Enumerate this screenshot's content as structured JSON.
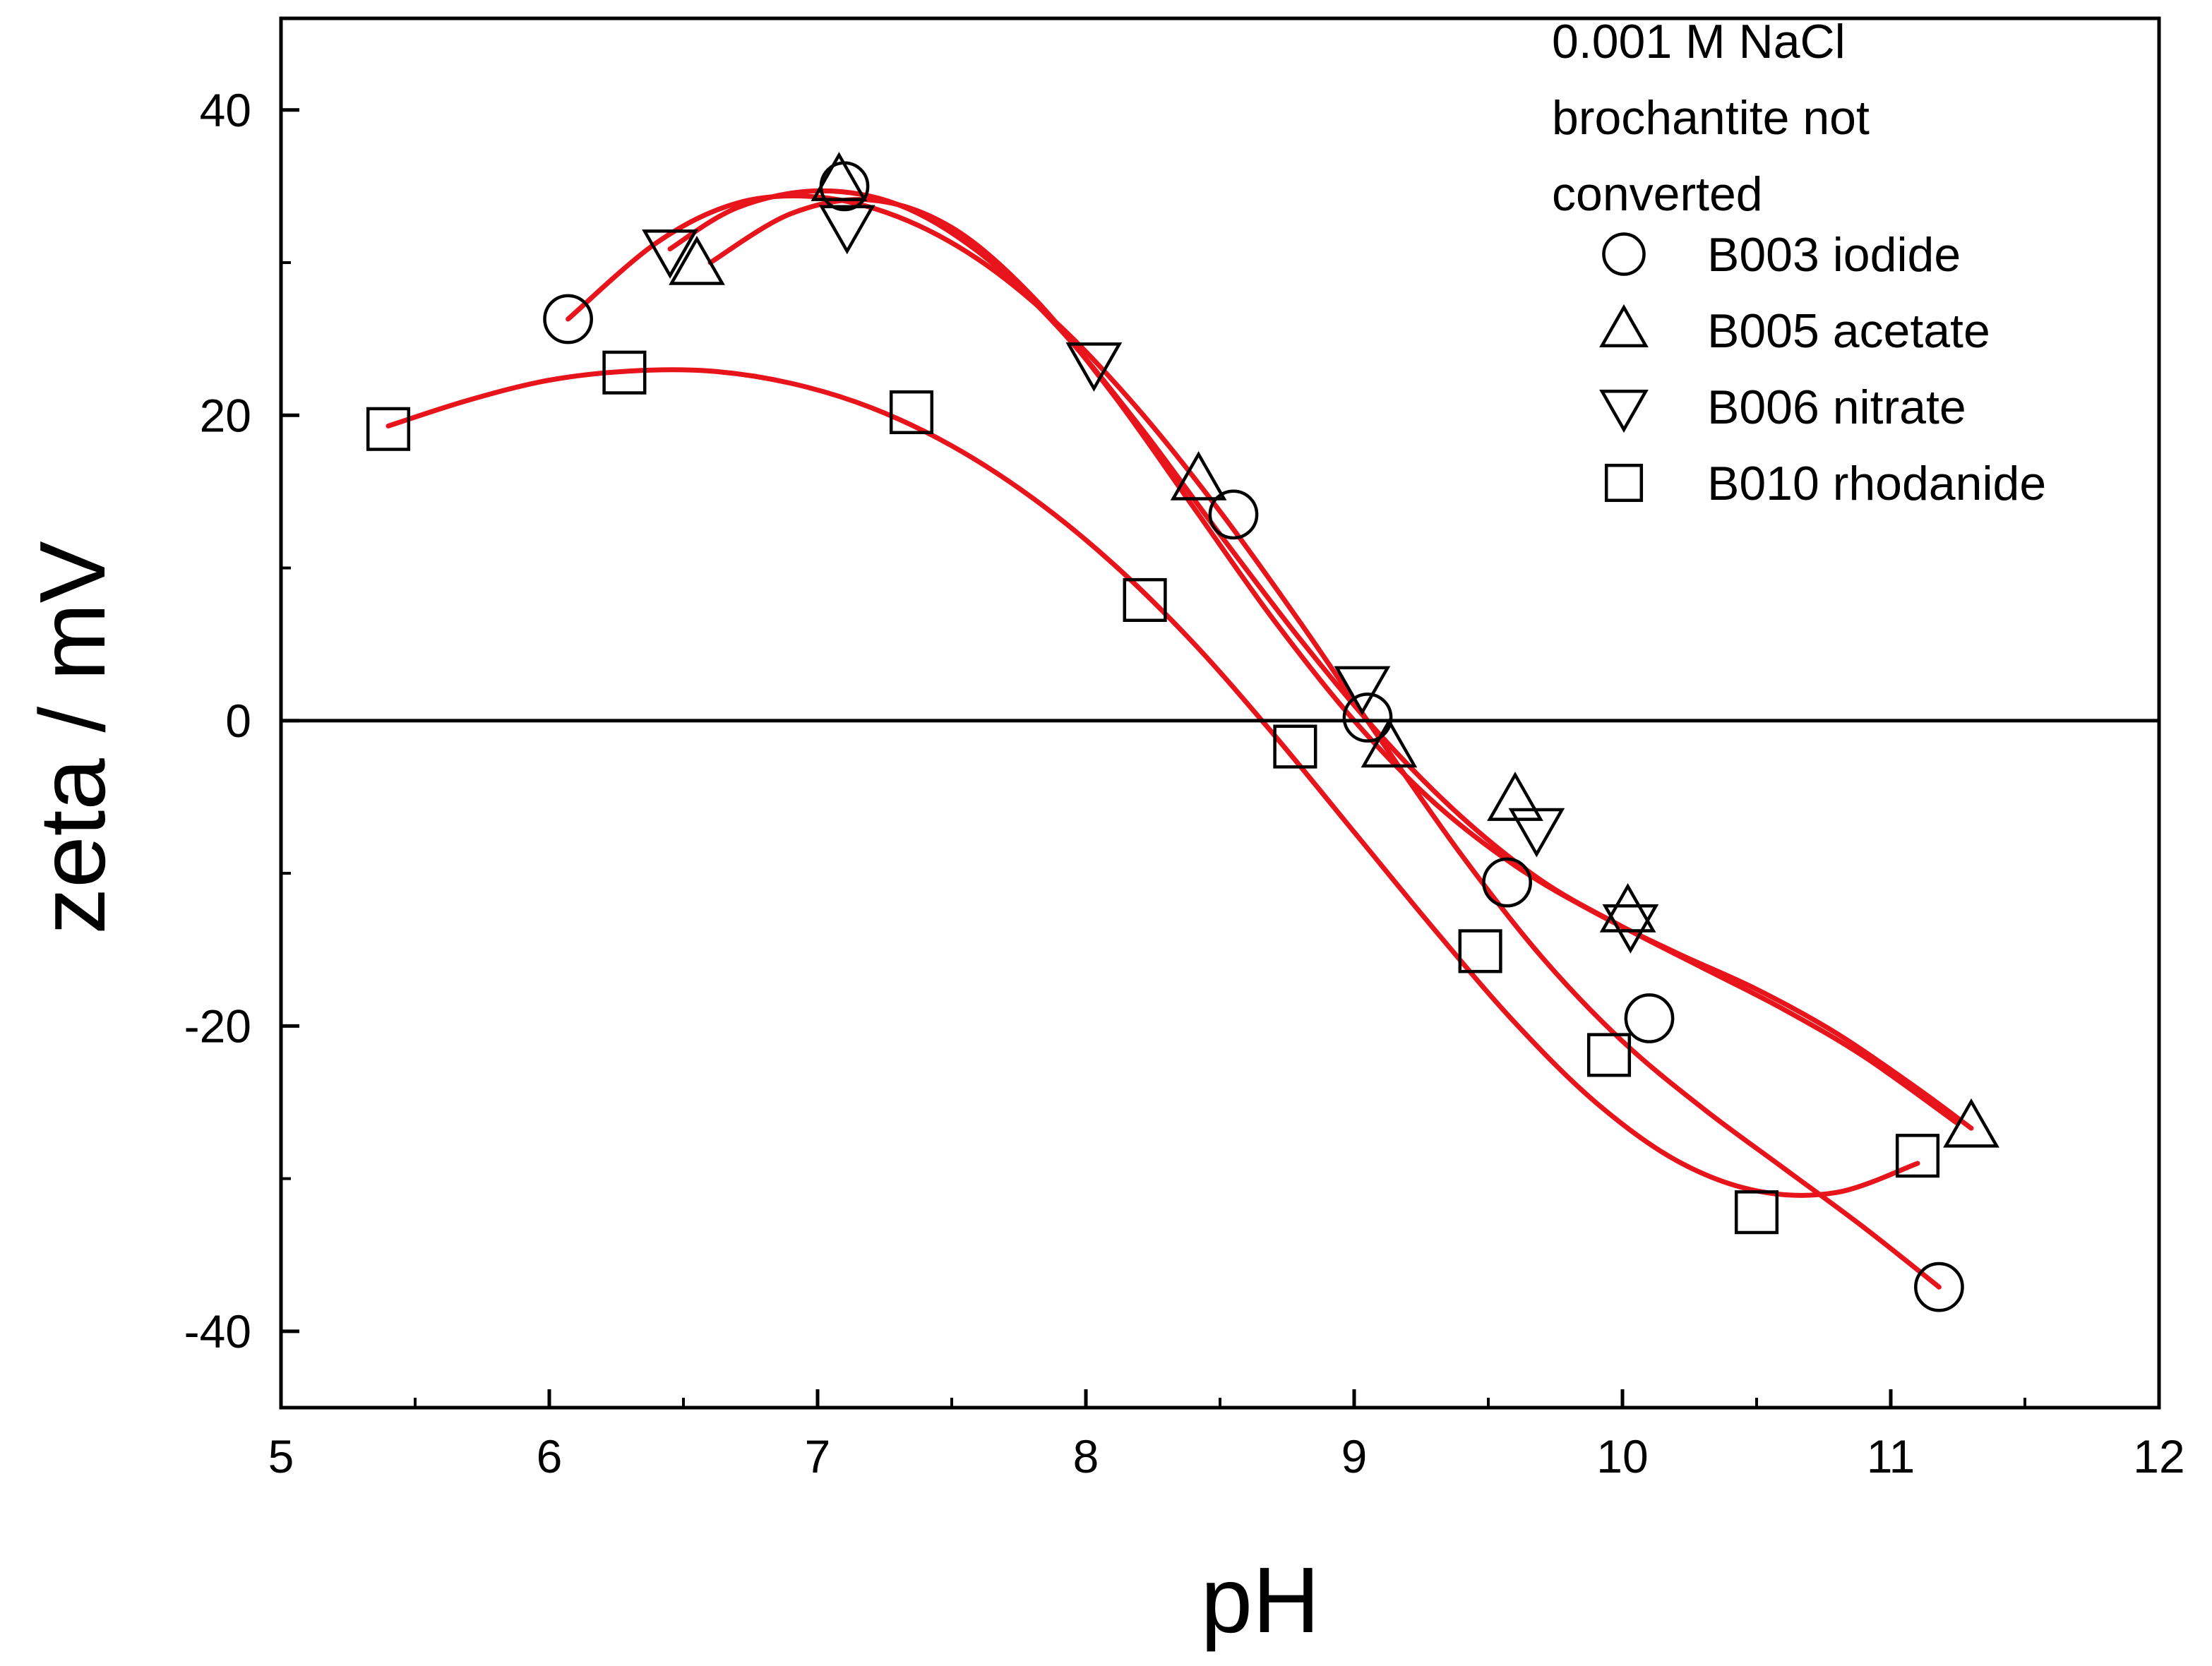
{
  "chart_data": {
    "type": "scatter",
    "title": "",
    "xlabel": "pH",
    "ylabel": "zeta / mV",
    "xlim": [
      5,
      12
    ],
    "ylim": [
      -45,
      46
    ],
    "xticks": [
      5,
      6,
      7,
      8,
      9,
      10,
      11,
      12
    ],
    "yticks": [
      -40,
      -20,
      0,
      20,
      40
    ],
    "xtick_labels": [
      "5",
      "6",
      "7",
      "8",
      "9",
      "10",
      "11",
      "12"
    ],
    "ytick_labels": [
      "-40",
      "-20",
      "0",
      "20",
      "40"
    ],
    "zero_line": 0,
    "grid": false,
    "legend": {
      "position": "top-right",
      "header_lines": [
        "0.001 M NaCl",
        "brochantite not",
        "converted"
      ]
    },
    "series": [
      {
        "name": "B003 iodide",
        "marker": "circle",
        "color": "#000000",
        "x": [
          6.07,
          7.1,
          8.55,
          9.05,
          9.57,
          10.1,
          11.18
        ],
        "y": [
          26.3,
          35.0,
          13.5,
          0.2,
          -10.6,
          -19.5,
          -37.1
        ],
        "fit_color": "#e8141b",
        "fit": {
          "x": [
            6.07,
            6.4,
            6.7,
            7.0,
            7.3,
            7.6,
            7.9,
            8.2,
            8.5,
            8.8,
            9.1,
            9.4,
            9.7,
            10.0,
            10.3,
            10.6,
            10.9,
            11.18
          ],
          "y": [
            26.3,
            31.3,
            33.9,
            34.3,
            33.0,
            30.2,
            25.9,
            20.3,
            13.7,
            6.4,
            -1.3,
            -8.8,
            -15.5,
            -21.0,
            -25.4,
            -29.3,
            -33.2,
            -37.1
          ]
        }
      },
      {
        "name": "B005 acetate",
        "marker": "triangle-up",
        "color": "#000000",
        "x": [
          6.55,
          7.08,
          8.42,
          9.13,
          9.6,
          10.02,
          11.3
        ],
        "y": [
          29.8,
          35.3,
          15.7,
          -1.8,
          -5.3,
          -12.6,
          -26.7
        ],
        "fit_color": "#e8141b",
        "fit": {
          "x": [
            6.6,
            6.9,
            7.2,
            7.5,
            7.8,
            8.1,
            8.4,
            8.7,
            9.0,
            9.3,
            9.6,
            9.9,
            10.2,
            10.5,
            10.8,
            11.1,
            11.3
          ],
          "y": [
            30.0,
            33.2,
            34.1,
            32.3,
            27.8,
            21.4,
            14.0,
            6.6,
            0.0,
            -5.4,
            -9.5,
            -12.6,
            -15.2,
            -17.6,
            -20.5,
            -24.1,
            -26.7
          ]
        }
      },
      {
        "name": "B006 nitrate",
        "marker": "triangle-down",
        "color": "#000000",
        "x": [
          6.45,
          7.11,
          8.03,
          9.03,
          9.68,
          10.03
        ],
        "y": [
          30.9,
          32.5,
          23.5,
          2.3,
          -7.0,
          -13.3
        ],
        "fit_color": "#e8141b",
        "fit": {
          "x": [
            6.45,
            6.7,
            7.0,
            7.3,
            7.6,
            7.9,
            8.2,
            8.5,
            8.8,
            9.1,
            9.4,
            9.7,
            10.0,
            10.3,
            10.6,
            10.9,
            11.25
          ],
          "y": [
            30.9,
            33.6,
            34.7,
            33.8,
            30.7,
            25.7,
            19.3,
            12.2,
            5.3,
            -1.0,
            -6.3,
            -10.5,
            -13.5,
            -16.2,
            -18.9,
            -22.0,
            -26.4
          ]
        }
      },
      {
        "name": "B010 rhodanide",
        "marker": "square",
        "color": "#000000",
        "x": [
          5.4,
          6.28,
          7.35,
          8.22,
          8.78,
          9.47,
          9.95,
          10.5,
          11.1
        ],
        "y": [
          19.1,
          22.8,
          20.2,
          7.9,
          -1.7,
          -15.1,
          -21.9,
          -32.2,
          -28.5
        ],
        "fit_color": "#e8141b",
        "fit": {
          "x": [
            5.4,
            5.7,
            6.0,
            6.3,
            6.6,
            6.9,
            7.2,
            7.5,
            7.8,
            8.1,
            8.4,
            8.7,
            9.0,
            9.3,
            9.6,
            9.9,
            10.2,
            10.5,
            10.8,
            11.1
          ],
          "y": [
            19.3,
            21.0,
            22.3,
            22.9,
            22.9,
            22.1,
            20.5,
            18.0,
            14.6,
            10.3,
            5.1,
            -0.9,
            -7.3,
            -13.7,
            -19.8,
            -25.0,
            -28.8,
            -30.8,
            -30.9,
            -29.0
          ]
        }
      }
    ]
  }
}
